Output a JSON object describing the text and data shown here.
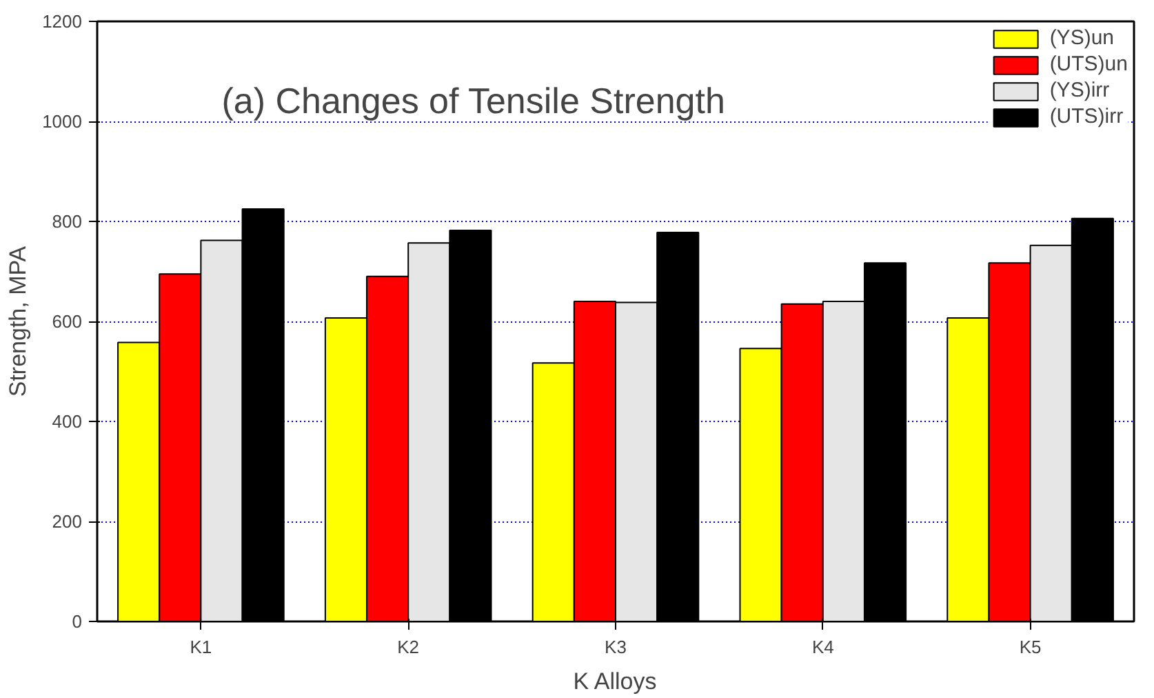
{
  "chart_data": {
    "type": "bar",
    "title": "(a) Changes of Tensile Strength",
    "xlabel": "K Alloys",
    "ylabel": "Strength, MPA",
    "categories": [
      "K1",
      "K2",
      "K3",
      "K4",
      "K5"
    ],
    "series": [
      {
        "name": "(YS)un",
        "color": "#ffff00",
        "values": [
          558,
          607,
          517,
          546,
          607
        ]
      },
      {
        "name": "(UTS)un",
        "color": "#ff0000",
        "values": [
          695,
          690,
          640,
          635,
          717
        ]
      },
      {
        "name": "(YS)irr",
        "color": "#e6e6e6",
        "values": [
          762,
          757,
          638,
          640,
          752
        ]
      },
      {
        "name": "(UTS)irr",
        "color": "#000000",
        "values": [
          825,
          782,
          778,
          717,
          806
        ]
      }
    ],
    "ylim": [
      0,
      1200
    ],
    "yticks": [
      0,
      200,
      400,
      600,
      800,
      1000,
      1200
    ],
    "grid": "y",
    "legend": "top right"
  }
}
